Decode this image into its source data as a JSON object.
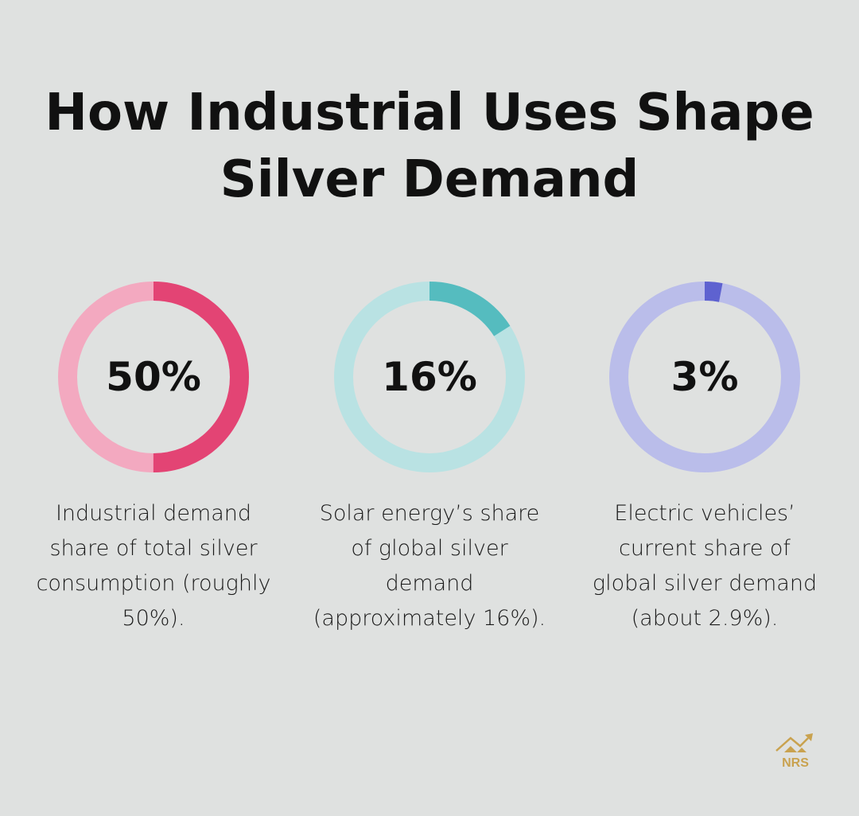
{
  "title": "How Industrial Uses Shape Silver Demand",
  "logo_text": "NRS",
  "chart_data": [
    {
      "type": "pie",
      "donut": true,
      "value": 50,
      "label": "50%",
      "description": "Industrial demand share of total silver consumption (roughly 50%).",
      "color": "#e34474",
      "track_color": "#f3a9c0"
    },
    {
      "type": "pie",
      "donut": true,
      "value": 16,
      "label": "16%",
      "description": "Solar energy’s share of global silver demand (approximately 16%).",
      "color": "#55bcbf",
      "track_color": "#b9e2e3"
    },
    {
      "type": "pie",
      "donut": true,
      "value": 3,
      "label": "3%",
      "description": "Electric vehicles’ current share of global silver demand (about 2.9%).",
      "color": "#5e62d0",
      "track_color": "#babdea"
    }
  ]
}
